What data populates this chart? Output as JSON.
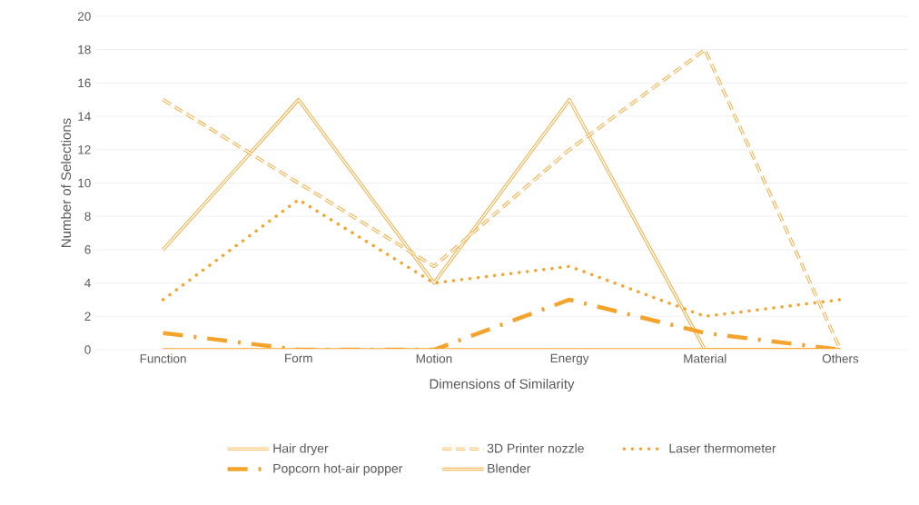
{
  "chart_data": {
    "type": "line",
    "xlabel": "Dimensions of Similarity",
    "ylabel": "Number of Selections",
    "categories": [
      "Function",
      "Form",
      "Motion",
      "Energy",
      "Material",
      "Others"
    ],
    "series": [
      {
        "name": "Hair dryer",
        "color": "#f4a42c",
        "line_style": "solid",
        "values": [
          6,
          15,
          4,
          15,
          0,
          0
        ]
      },
      {
        "name": "3D Printer nozzle",
        "color": "#f4a42c",
        "line_style": "dashed",
        "values": [
          15,
          10,
          5,
          12,
          18,
          0
        ]
      },
      {
        "name": "Laser thermometer",
        "color": "#f4a42c",
        "line_style": "dotted",
        "values": [
          3,
          9,
          4,
          5,
          2,
          3
        ]
      },
      {
        "name": "Popcorn hot-air popper",
        "color": "#f4a42c",
        "line_style": "dashdot",
        "values": [
          1,
          0,
          0,
          3,
          1,
          0
        ]
      },
      {
        "name": "Blender",
        "color": "#f4a42c",
        "line_style": "solid",
        "values": [
          0,
          0,
          0,
          0,
          0,
          0
        ]
      }
    ],
    "ylim": [
      0,
      20
    ],
    "yticks": [
      0,
      2,
      4,
      6,
      8,
      10,
      12,
      14,
      16,
      18,
      20
    ],
    "grid": "y",
    "legend": "bottom",
    "marker": "none"
  }
}
